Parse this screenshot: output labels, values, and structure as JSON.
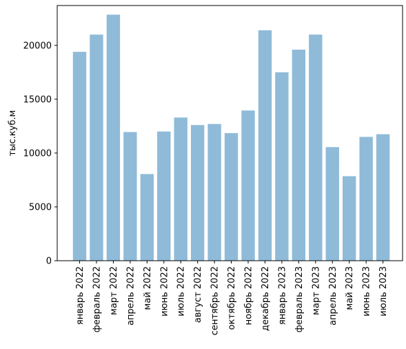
{
  "chart_data": {
    "type": "bar",
    "title": "",
    "xlabel": "",
    "ylabel": "тыс.куб.м",
    "ylim": [
      0,
      23700
    ],
    "yticks": [
      0,
      5000,
      10000,
      15000,
      20000
    ],
    "ytick_labels": [
      "0",
      "5000",
      "10000",
      "15000",
      "20000"
    ],
    "grid": false,
    "legend": "none",
    "bar_color": "#8fbbd9",
    "categories": [
      "январь 2022",
      "февраль 2022",
      "март 2022",
      "апрель 2022",
      "май 2022",
      "июнь 2022",
      "июль 2022",
      "август 2022",
      "сентябрь 2022",
      "октябрь 2022",
      "ноябрь 2022",
      "декабрь 2022",
      "январь 2023",
      "февраль 2023",
      "март 2023",
      "апрель 2023",
      "май 2023",
      "июнь 2023",
      "июль 2023"
    ],
    "values": [
      19400,
      21000,
      22850,
      11950,
      8050,
      12000,
      13300,
      12600,
      12700,
      11850,
      13950,
      21400,
      17500,
      19600,
      21000,
      10550,
      7850,
      11500,
      11750
    ]
  }
}
